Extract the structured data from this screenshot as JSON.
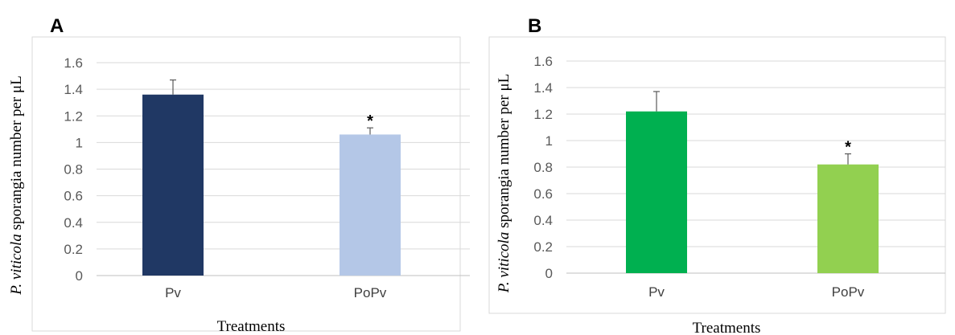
{
  "chart_data": [
    {
      "type": "bar",
      "panel": "A",
      "categories": [
        "Pv",
        "PoPv"
      ],
      "values": [
        1.36,
        1.06
      ],
      "error": [
        0.11,
        0.05
      ],
      "colors": [
        "#203864",
        "#B4C7E7"
      ],
      "annotations": [
        "",
        "*"
      ],
      "ylabel": {
        "italic": "P. viticola",
        "rest": " sporangia number per μL"
      },
      "xlabel": "Treatments",
      "ylim": [
        0,
        1.6
      ],
      "yticks": [
        "0",
        "0.2",
        "0.4",
        "0.6",
        "0.8",
        "1",
        "1.2",
        "1.4",
        "1.6"
      ],
      "grid": true
    },
    {
      "type": "bar",
      "panel": "B",
      "categories": [
        "Pv",
        "PoPv"
      ],
      "values": [
        1.22,
        0.82
      ],
      "error": [
        0.15,
        0.08
      ],
      "colors": [
        "#00B050",
        "#92D050"
      ],
      "annotations": [
        "",
        "*"
      ],
      "ylabel": {
        "italic": "P. viticola",
        "rest": " sporangia number per μL"
      },
      "xlabel": "Treatments",
      "ylim": [
        0,
        1.6
      ],
      "yticks": [
        "0",
        "0.2",
        "0.4",
        "0.6",
        "0.8",
        "1",
        "1.2",
        "1.4",
        "1.6"
      ],
      "grid": true
    }
  ]
}
